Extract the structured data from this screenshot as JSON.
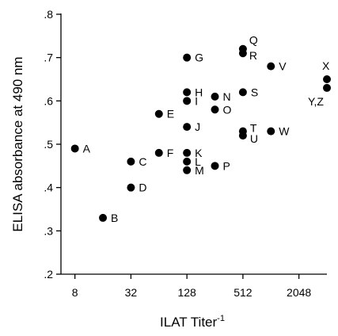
{
  "chart_data": {
    "type": "scatter",
    "xlabel": "ILAT Titer",
    "xlabel_superscript": "-1",
    "ylabel": "ELISA absorbance at 490 nm",
    "x_scale": "log2",
    "xlim": [
      5.66,
      4096
    ],
    "ylim": [
      0.2,
      0.8
    ],
    "x_ticks": [
      8,
      32,
      128,
      512,
      2048
    ],
    "x_tick_labels": [
      "8",
      "32",
      "128",
      "512",
      "2048"
    ],
    "y_ticks": [
      0.2,
      0.3,
      0.4,
      0.5,
      0.6,
      0.7,
      0.8
    ],
    "y_tick_labels": [
      ".2",
      ".3",
      ".4",
      ".5",
      ".6",
      ".7",
      ".8"
    ],
    "grid": false,
    "marker_color": "#000000",
    "points": [
      {
        "label": "A",
        "x": 8,
        "y": 0.49
      },
      {
        "label": "B",
        "x": 16,
        "y": 0.33
      },
      {
        "label": "C",
        "x": 32,
        "y": 0.46
      },
      {
        "label": "D",
        "x": 32,
        "y": 0.4
      },
      {
        "label": "E",
        "x": 64,
        "y": 0.57
      },
      {
        "label": "F",
        "x": 64,
        "y": 0.48
      },
      {
        "label": "G",
        "x": 128,
        "y": 0.7
      },
      {
        "label": "H",
        "x": 128,
        "y": 0.62
      },
      {
        "label": "I",
        "x": 128,
        "y": 0.6
      },
      {
        "label": "J",
        "x": 128,
        "y": 0.54
      },
      {
        "label": "K",
        "x": 128,
        "y": 0.48
      },
      {
        "label": "L",
        "x": 128,
        "y": 0.46
      },
      {
        "label": "M",
        "x": 128,
        "y": 0.44
      },
      {
        "label": "N",
        "x": 256,
        "y": 0.61
      },
      {
        "label": "O",
        "x": 256,
        "y": 0.58
      },
      {
        "label": "P",
        "x": 256,
        "y": 0.45
      },
      {
        "label": "Q",
        "x": 512,
        "y": 0.72
      },
      {
        "label": "R",
        "x": 512,
        "y": 0.71
      },
      {
        "label": "S",
        "x": 512,
        "y": 0.62
      },
      {
        "label": "T",
        "x": 512,
        "y": 0.53
      },
      {
        "label": "U",
        "x": 512,
        "y": 0.52
      },
      {
        "label": "V",
        "x": 1024,
        "y": 0.68
      },
      {
        "label": "W",
        "x": 1024,
        "y": 0.53
      },
      {
        "label": "X",
        "x": 4096,
        "y": 0.65
      },
      {
        "label": "Y,Z",
        "x": 4096,
        "y": 0.63
      }
    ]
  }
}
